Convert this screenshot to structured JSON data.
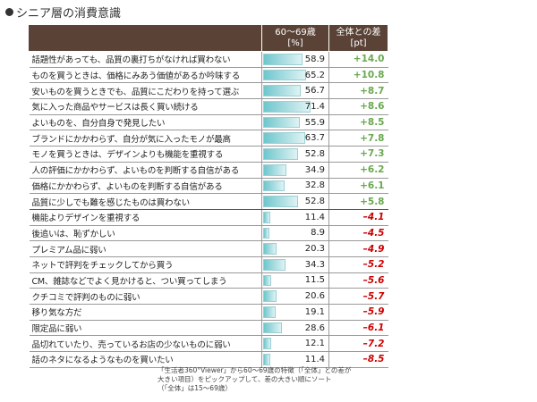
{
  "title": "シニア層の消費意識",
  "chart_data": {
    "type": "table",
    "columns": [
      "",
      "60～69歳\n[%]",
      "全体との差\n[pt]"
    ],
    "col_val_line1": "60～69歳",
    "col_val_line2": "[%]",
    "col_diff_line1": "全体との差",
    "col_diff_line2": "[pt]",
    "val_max": 100,
    "rows": [
      {
        "label": "話題性があっても、品質の裏打ちがなければ買わない",
        "value": 58.9,
        "value_text": "58.9",
        "diff": 14.0,
        "diff_text": "+14.0"
      },
      {
        "label": "ものを買うときは、価格にみあう価値があるか吟味する",
        "value": 65.2,
        "value_text": "65.2",
        "diff": 10.8,
        "diff_text": "+10.8"
      },
      {
        "label": "安いものを買うときでも、品質にこだわりを持って選ぶ",
        "value": 56.7,
        "value_text": "56.7",
        "diff": 8.7,
        "diff_text": "+8.7"
      },
      {
        "label": "気に入った商品やサービスは長く買い続ける",
        "value": 71.4,
        "value_text": "71.4",
        "diff": 8.6,
        "diff_text": "+8.6"
      },
      {
        "label": "よいものを、自分自身で発見したい",
        "value": 55.9,
        "value_text": "55.9",
        "diff": 8.5,
        "diff_text": "+8.5"
      },
      {
        "label": "ブランドにかかわらず、自分が気に入ったモノが最高",
        "value": 63.7,
        "value_text": "63.7",
        "diff": 7.8,
        "diff_text": "+7.8"
      },
      {
        "label": "モノを買うときは、デザインよりも機能を重視する",
        "value": 52.8,
        "value_text": "52.8",
        "diff": 7.3,
        "diff_text": "+7.3"
      },
      {
        "label": "人の評価にかかわらず、よいものを判断する自信がある",
        "value": 34.9,
        "value_text": "34.9",
        "diff": 6.2,
        "diff_text": "+6.2"
      },
      {
        "label": "価格にかかわらず、よいものを判断する自信がある",
        "value": 32.8,
        "value_text": "32.8",
        "diff": 6.1,
        "diff_text": "+6.1"
      },
      {
        "label": "品質に少しでも難を感じたものは買わない",
        "value": 52.8,
        "value_text": "52.8",
        "diff": 5.8,
        "diff_text": "+5.8"
      },
      {
        "label": "機能よりデザインを重視する",
        "value": 11.4,
        "value_text": "11.4",
        "diff": -4.1,
        "diff_text": "–4.1"
      },
      {
        "label": "後追いは、恥ずかしい",
        "value": 8.9,
        "value_text": "8.9",
        "diff": -4.5,
        "diff_text": "–4.5"
      },
      {
        "label": "プレミアム品に弱い",
        "value": 20.3,
        "value_text": "20.3",
        "diff": -4.9,
        "diff_text": "–4.9"
      },
      {
        "label": "ネットで評判をチェックしてから買う",
        "value": 34.3,
        "value_text": "34.3",
        "diff": -5.2,
        "diff_text": "–5.2"
      },
      {
        "label": "CM、雑誌などでよく見かけると、つい買ってしまう",
        "value": 11.5,
        "value_text": "11.5",
        "diff": -5.6,
        "diff_text": "–5.6"
      },
      {
        "label": "クチコミで評判のものに弱い",
        "value": 20.6,
        "value_text": "20.6",
        "diff": -5.7,
        "diff_text": "–5.7"
      },
      {
        "label": "移り気な方だ",
        "value": 19.1,
        "value_text": "19.1",
        "diff": -5.9,
        "diff_text": "–5.9"
      },
      {
        "label": "限定品に弱い",
        "value": 28.6,
        "value_text": "28.6",
        "diff": -6.1,
        "diff_text": "–6.1"
      },
      {
        "label": "品切れていたり、売っているお店の少ないものに弱い",
        "value": 12.1,
        "value_text": "12.1",
        "diff": -7.2,
        "diff_text": "–7.2"
      },
      {
        "label": "話のネタになるようなものを買いたい",
        "value": 11.4,
        "value_text": "11.4",
        "diff": -8.5,
        "diff_text": "–8.5"
      }
    ],
    "colors": {
      "header_bg": "#5a4336",
      "bar": "#6fc6cd",
      "positive": "#6aa84f",
      "negative": "#cc0000"
    }
  },
  "note": {
    "line1": "「生活者360°Viewer」から60～69歳の特徴（「全体」との差が",
    "line2": "大きい項目）をピックアップして、差の大きい順にソート",
    "line3": "（「全体」は15～69歳）"
  }
}
